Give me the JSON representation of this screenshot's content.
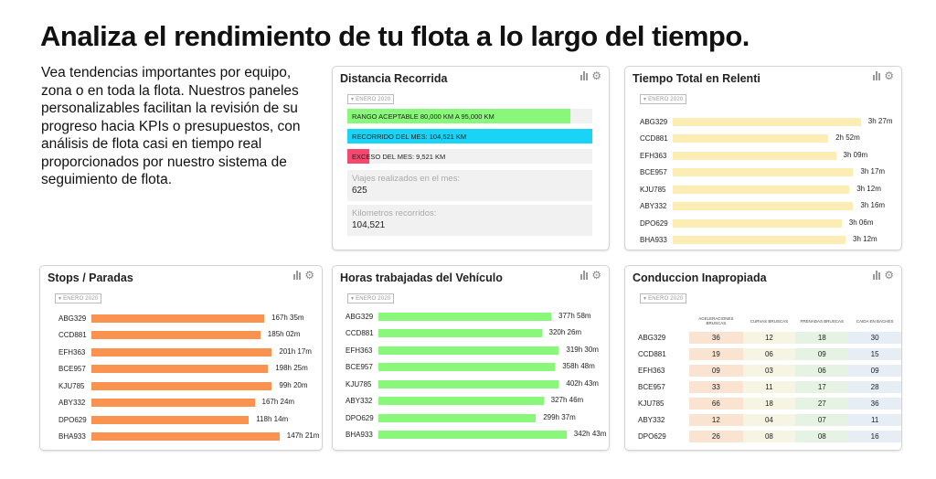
{
  "headline": "Analiza el rendimiento de tu flota a lo largo del tiempo.",
  "intro": "Vea tendencias importantes por equipo, zona o en toda la flota. Nuestros paneles personalizables facilitan la revisión de su progreso hacia KPIs o presupuestos, con análisis de flota casi en tiempo real proporcionados por nuestro sistema de seguimiento de flota.",
  "date_filter": "ENERO 2020",
  "colors": {
    "green": "#88f77a",
    "cyan": "#1ad4f8",
    "red": "#f5486f",
    "orange": "#fb9350",
    "yellow": "#fbedb3"
  },
  "distancia": {
    "title": "Distancia Recorrida",
    "bars": [
      {
        "label": "RANGO ACEPTABLE 80,000 KM A 95,000 KM",
        "fill": 0.91,
        "color": "#88f77a"
      },
      {
        "label": "RECORRIDO DEL MES: 104,521 KM",
        "fill": 1.0,
        "color": "#1ad4f8"
      },
      {
        "label": "EXCESO DEL MES: 9,521 KM",
        "fill": 0.09,
        "color": "#f5486f"
      }
    ],
    "stats": [
      {
        "label": "Viajes realizados en el mes:",
        "value": "625"
      },
      {
        "label": "Kilometros recorridos:",
        "value": "104,521"
      }
    ]
  },
  "relenti": {
    "title": "Tiempo Total en Relenti",
    "color": "#fbedb3",
    "rows": [
      {
        "id": "ABG329",
        "value": "3h 27m",
        "fill": 0.98
      },
      {
        "id": "CCD881",
        "value": "2h 52m",
        "fill": 0.81
      },
      {
        "id": "EFH363",
        "value": "3h 09m",
        "fill": 0.85
      },
      {
        "id": "BCE957",
        "value": "3h 17m",
        "fill": 0.94
      },
      {
        "id": "KJU785",
        "value": "3h 12m",
        "fill": 0.92
      },
      {
        "id": "ABY332",
        "value": "3h 16m",
        "fill": 0.94
      },
      {
        "id": "DPO629",
        "value": "3h 06m",
        "fill": 0.88
      },
      {
        "id": "BHA933",
        "value": "3h 12m",
        "fill": 0.9
      }
    ]
  },
  "stops": {
    "title": "Stops / Paradas",
    "color": "#fb9350",
    "rows": [
      {
        "id": "ABG329",
        "value": "167h 35m",
        "fill": 0.9
      },
      {
        "id": "CCD881",
        "value": "185h 02m",
        "fill": 0.88
      },
      {
        "id": "EFH363",
        "value": "201h 17m",
        "fill": 0.94
      },
      {
        "id": "BCE957",
        "value": "198h 25m",
        "fill": 0.92
      },
      {
        "id": "KJU785",
        "value": "99h 20m",
        "fill": 0.94
      },
      {
        "id": "ABY332",
        "value": "167h 24m",
        "fill": 0.85
      },
      {
        "id": "DPO629",
        "value": "118h 14m",
        "fill": 0.82
      },
      {
        "id": "BHA933",
        "value": "147h 21m",
        "fill": 0.98
      }
    ]
  },
  "horas": {
    "title": "Horas trabajadas del Vehículo",
    "color": "#88f77a",
    "rows": [
      {
        "id": "ABG329",
        "value": "377h 58m",
        "fill": 0.9
      },
      {
        "id": "CCD881",
        "value": "320h 26m",
        "fill": 0.85
      },
      {
        "id": "EFH363",
        "value": "319h 30m",
        "fill": 0.94
      },
      {
        "id": "BCE957",
        "value": "358h 48m",
        "fill": 0.92
      },
      {
        "id": "KJU785",
        "value": "402h 43m",
        "fill": 0.94
      },
      {
        "id": "ABY332",
        "value": "327h 46m",
        "fill": 0.86
      },
      {
        "id": "DPO629",
        "value": "299h 37m",
        "fill": 0.82
      },
      {
        "id": "BHA933",
        "value": "342h 43m",
        "fill": 0.98
      }
    ]
  },
  "conduccion": {
    "title": "Conduccion Inapropiada",
    "columns": [
      "ACELERACIONES BRUSCAS",
      "CURVAS BRUSCAS",
      "FRENADAS BRUSCAS",
      "CAIDA EN BACHES"
    ],
    "col_colors": [
      "#fbe3d1",
      "#f6f5e4",
      "#e6f3e4",
      "#e6edf4"
    ],
    "rows": [
      {
        "id": "ABG329",
        "values": [
          "36",
          "12",
          "18",
          "30"
        ]
      },
      {
        "id": "CCD881",
        "values": [
          "19",
          "06",
          "09",
          "15"
        ]
      },
      {
        "id": "EFH363",
        "values": [
          "09",
          "03",
          "06",
          "09"
        ]
      },
      {
        "id": "BCE957",
        "values": [
          "33",
          "11",
          "17",
          "28"
        ]
      },
      {
        "id": "KJU785",
        "values": [
          "66",
          "18",
          "27",
          "36"
        ]
      },
      {
        "id": "ABY332",
        "values": [
          "12",
          "04",
          "07",
          "11"
        ]
      },
      {
        "id": "DPO629",
        "values": [
          "26",
          "08",
          "08",
          "16"
        ]
      }
    ]
  }
}
